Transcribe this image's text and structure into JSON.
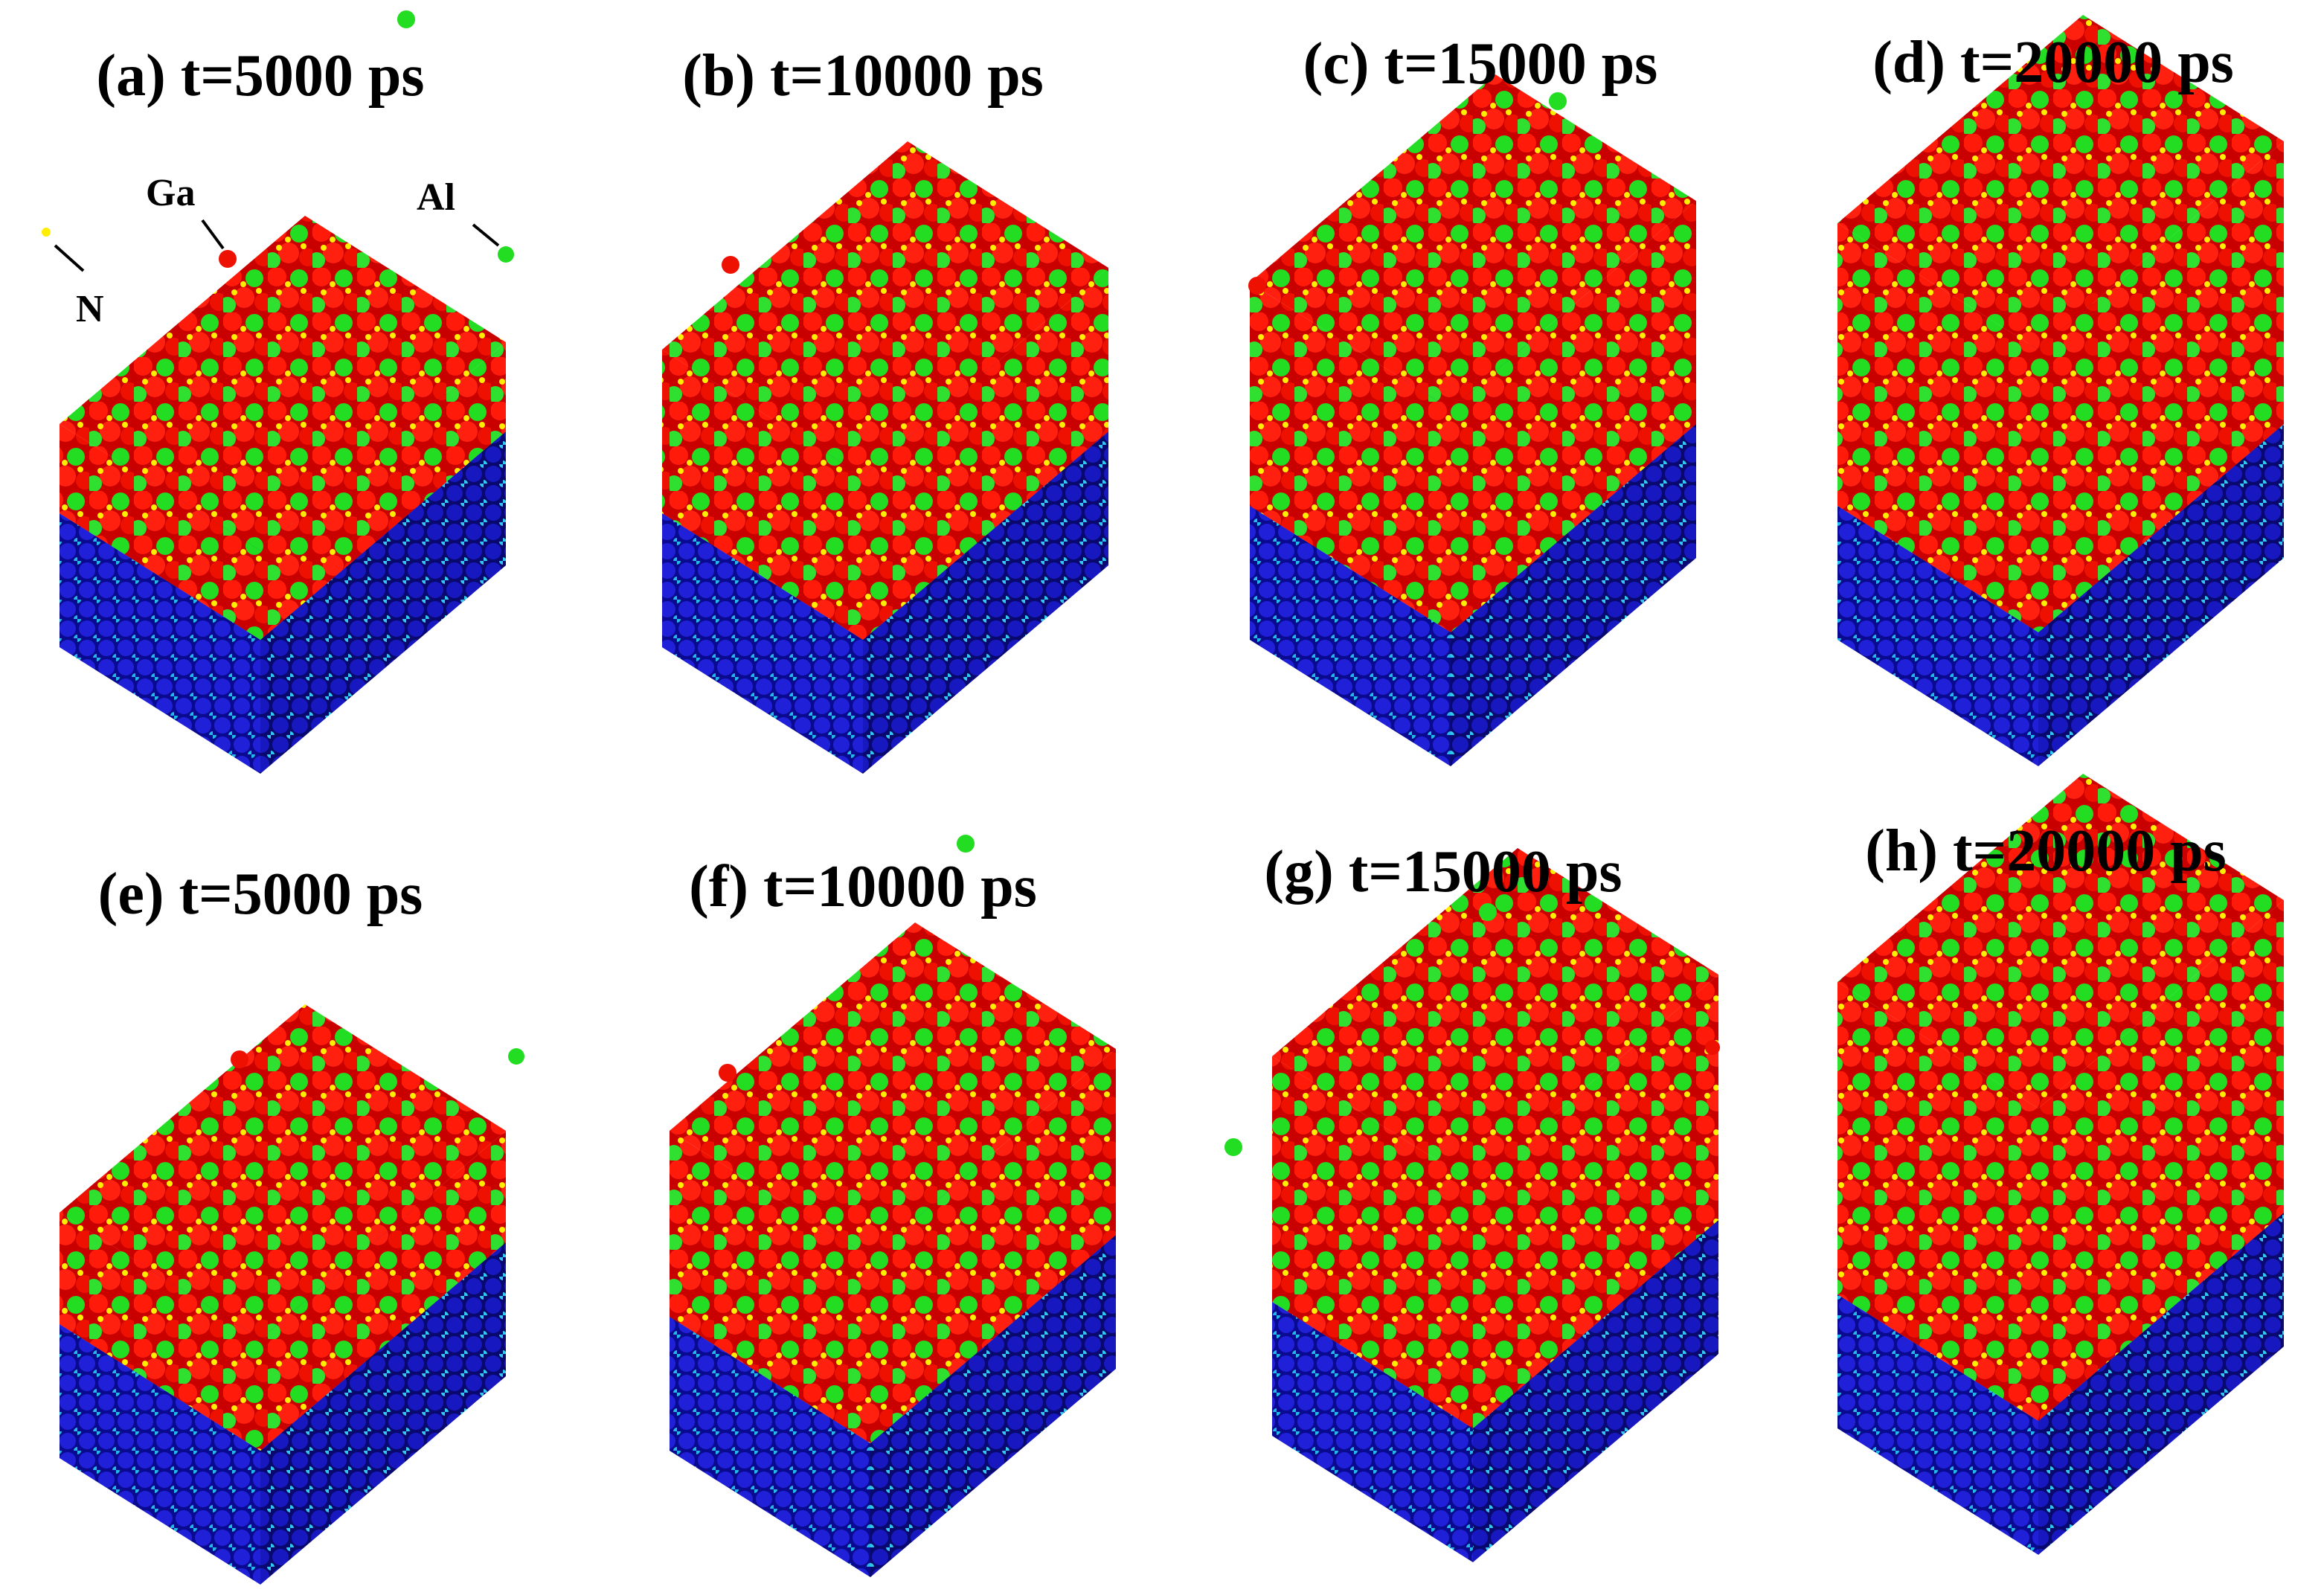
{
  "panels": [
    {
      "label": "(a) t=5000 ps"
    },
    {
      "label": "(b) t=10000 ps"
    },
    {
      "label": "(c) t=15000 ps"
    },
    {
      "label": "(d) t=20000 ps"
    },
    {
      "label": "(e) t=5000 ps"
    },
    {
      "label": "(f) t=10000 ps"
    },
    {
      "label": "(g) t=15000 ps"
    },
    {
      "label": "(h) t=20000 ps"
    }
  ],
  "legend": {
    "ga": "Ga",
    "al": "Al",
    "n": "N"
  }
}
